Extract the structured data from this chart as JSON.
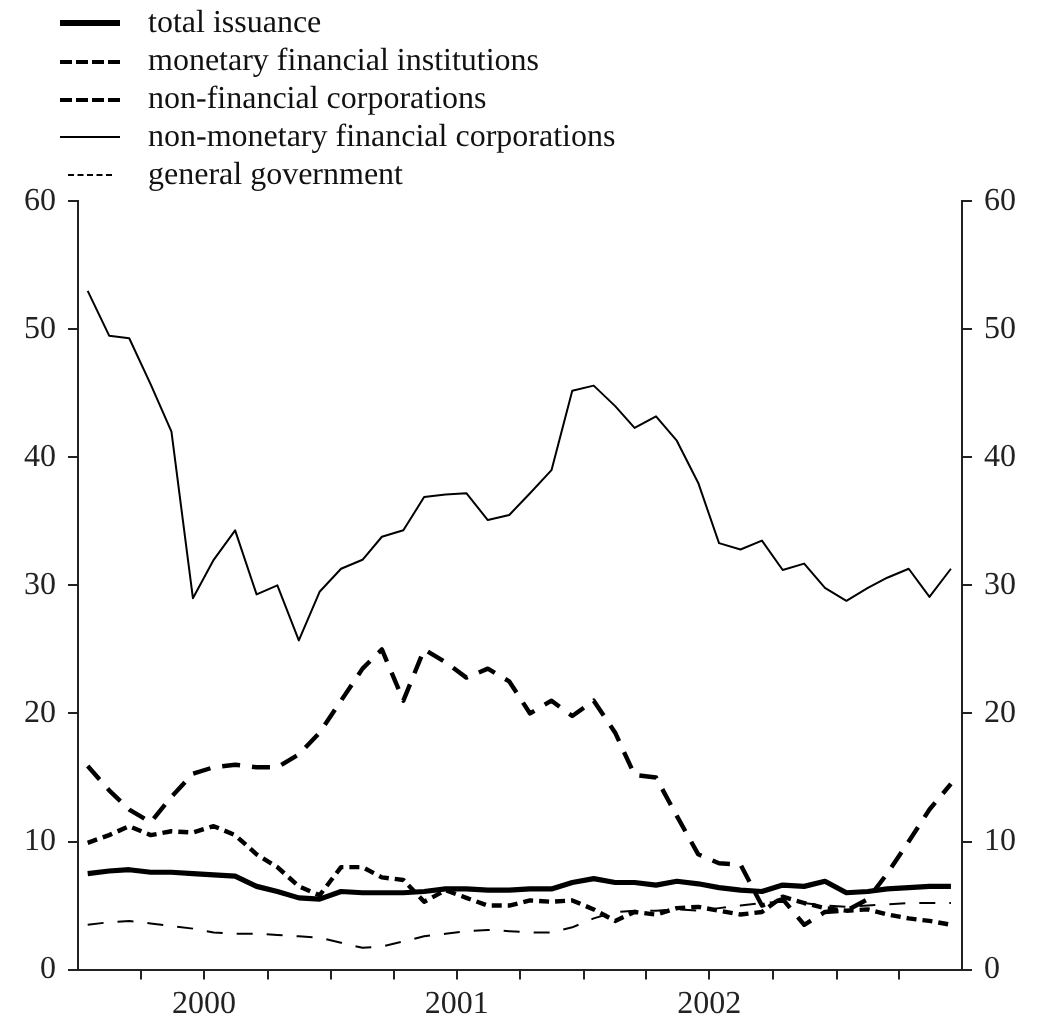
{
  "chart_data": {
    "type": "line",
    "x": [
      "2000-01-15",
      "2000-02-15",
      "2000-03-15",
      "2000-04-15",
      "2000-05-15",
      "2000-06-15",
      "2000-07-15",
      "2000-08-15",
      "2000-09-15",
      "2000-10-15",
      "2000-11-15",
      "2000-12-15",
      "2001-01-15",
      "2001-02-15",
      "2001-03-15",
      "2001-04-15",
      "2001-05-15",
      "2001-06-15",
      "2001-07-15",
      "2001-08-15",
      "2001-09-15",
      "2001-10-15",
      "2001-11-15",
      "2001-12-15",
      "2002-01-15",
      "2002-02-15",
      "2002-03-15",
      "2002-04-15",
      "2002-05-15",
      "2002-06-15",
      "2002-07-15",
      "2002-08-15",
      "2002-09-15",
      "2002-10-15",
      "2002-11-15",
      "2002-12-15",
      "2003-01-15",
      "2003-02-15",
      "2003-03-15",
      "2003-04-15",
      "2003-05-15",
      "2003-06-15"
    ],
    "series": [
      {
        "name": "total issuance",
        "color": "#000000",
        "line_style": "solid",
        "values": [
          7.5,
          7.7,
          7.8,
          7.6,
          7.6,
          7.5,
          7.4,
          7.3,
          6.5,
          6.1,
          5.6,
          5.5,
          6.1,
          6,
          6,
          6,
          6.1,
          6.3,
          6.3,
          6.2,
          6.2,
          6.3,
          6.3,
          6.8,
          7.1,
          6.8,
          6.8,
          6.6,
          6.9,
          6.7,
          6.4,
          6.2,
          6.1,
          6.6,
          6.5,
          6.9,
          6,
          6.1,
          6.3,
          6.4,
          6.5,
          6.5
        ]
      },
      {
        "name": "monetary financial institutions",
        "color": "#000000",
        "line_style": "dashed",
        "values": [
          15.9,
          14,
          12.5,
          11.5,
          13.5,
          15.3,
          15.8,
          16,
          15.8,
          15.8,
          16.8,
          18.5,
          21,
          23.5,
          25,
          21,
          25,
          24,
          22.8,
          23.5,
          22.5,
          20,
          21,
          19.8,
          21,
          18.5,
          15.2,
          15,
          12,
          9,
          8.3,
          8.2,
          5,
          5.5,
          3.5,
          4.5,
          4.6,
          5.5,
          7.5,
          10,
          12.5,
          14.5
        ]
      },
      {
        "name": "non-financial corporations",
        "color": "#000000",
        "line_style": "dashed",
        "values": [
          9.9,
          10.5,
          11.2,
          10.5,
          10.8,
          10.7,
          11.2,
          10.5,
          9,
          8,
          6.5,
          5.8,
          8,
          8,
          7.2,
          7,
          5.3,
          6.2,
          5.6,
          5,
          5,
          5.4,
          5.3,
          5.4,
          4.7,
          3.8,
          4.5,
          4.3,
          4.8,
          4.9,
          4.6,
          4.3,
          4.5,
          5.7,
          5.2,
          4.8,
          4.6,
          4.7,
          4.3,
          4,
          3.8,
          3.5
        ]
      },
      {
        "name": "non-monetary financial corporations",
        "color": "#000000",
        "line_style": "solid",
        "values": [
          53,
          49.5,
          49.3,
          45.7,
          42,
          29,
          32,
          34.3,
          29.3,
          30,
          25.7,
          29.5,
          31.3,
          32,
          33.8,
          34.3,
          36.9,
          37.1,
          37.2,
          35.1,
          35.5,
          37.2,
          39,
          45.2,
          45.6,
          44,
          42.3,
          43.2,
          41.3,
          38,
          33.3,
          32.8,
          33.5,
          31.2,
          31.7,
          29.8,
          28.8,
          29.8,
          30.6,
          31.3,
          29.1,
          31.3
        ]
      },
      {
        "name": "general government",
        "color": "#000000",
        "line_style": "dashed",
        "values": [
          3.5,
          3.7,
          3.8,
          3.6,
          3.4,
          3.2,
          2.9,
          2.8,
          2.8,
          2.7,
          2.6,
          2.5,
          2.1,
          1.7,
          1.8,
          2.2,
          2.6,
          2.8,
          3,
          3.1,
          3,
          2.9,
          2.9,
          3.3,
          4,
          4.5,
          4.6,
          4.6,
          4.7,
          4.6,
          4.8,
          5,
          5.2,
          5.3,
          5.2,
          5,
          4.9,
          5,
          5.1,
          5.2,
          5.2,
          5.2
        ]
      }
    ],
    "xlim": [
      "2000-01-01",
      "2003-07-01"
    ],
    "xticks": [
      {
        "value": "2000-04-01",
        "label": null
      },
      {
        "value": "2000-07-01",
        "label": "2000"
      },
      {
        "value": "2000-10-01",
        "label": null
      },
      {
        "value": "2001-01-01",
        "label": null
      },
      {
        "value": "2001-04-01",
        "label": null
      },
      {
        "value": "2001-07-01",
        "label": "2001"
      },
      {
        "value": "2001-10-01",
        "label": null
      },
      {
        "value": "2002-01-01",
        "label": null
      },
      {
        "value": "2002-04-01",
        "label": null
      },
      {
        "value": "2002-07-01",
        "label": "2002"
      },
      {
        "value": "2002-10-01",
        "label": null
      },
      {
        "value": "2003-01-01",
        "label": null
      },
      {
        "value": "2003-04-01",
        "label": null
      }
    ],
    "ylim": [
      0,
      60
    ],
    "yticks": [
      0,
      10,
      20,
      30,
      40,
      50,
      60
    ],
    "y2lim": [
      0,
      60
    ],
    "y2ticks": [
      0,
      10,
      20,
      30,
      40,
      50,
      60
    ],
    "grid": false,
    "legend": "top left",
    "marker": "none"
  }
}
